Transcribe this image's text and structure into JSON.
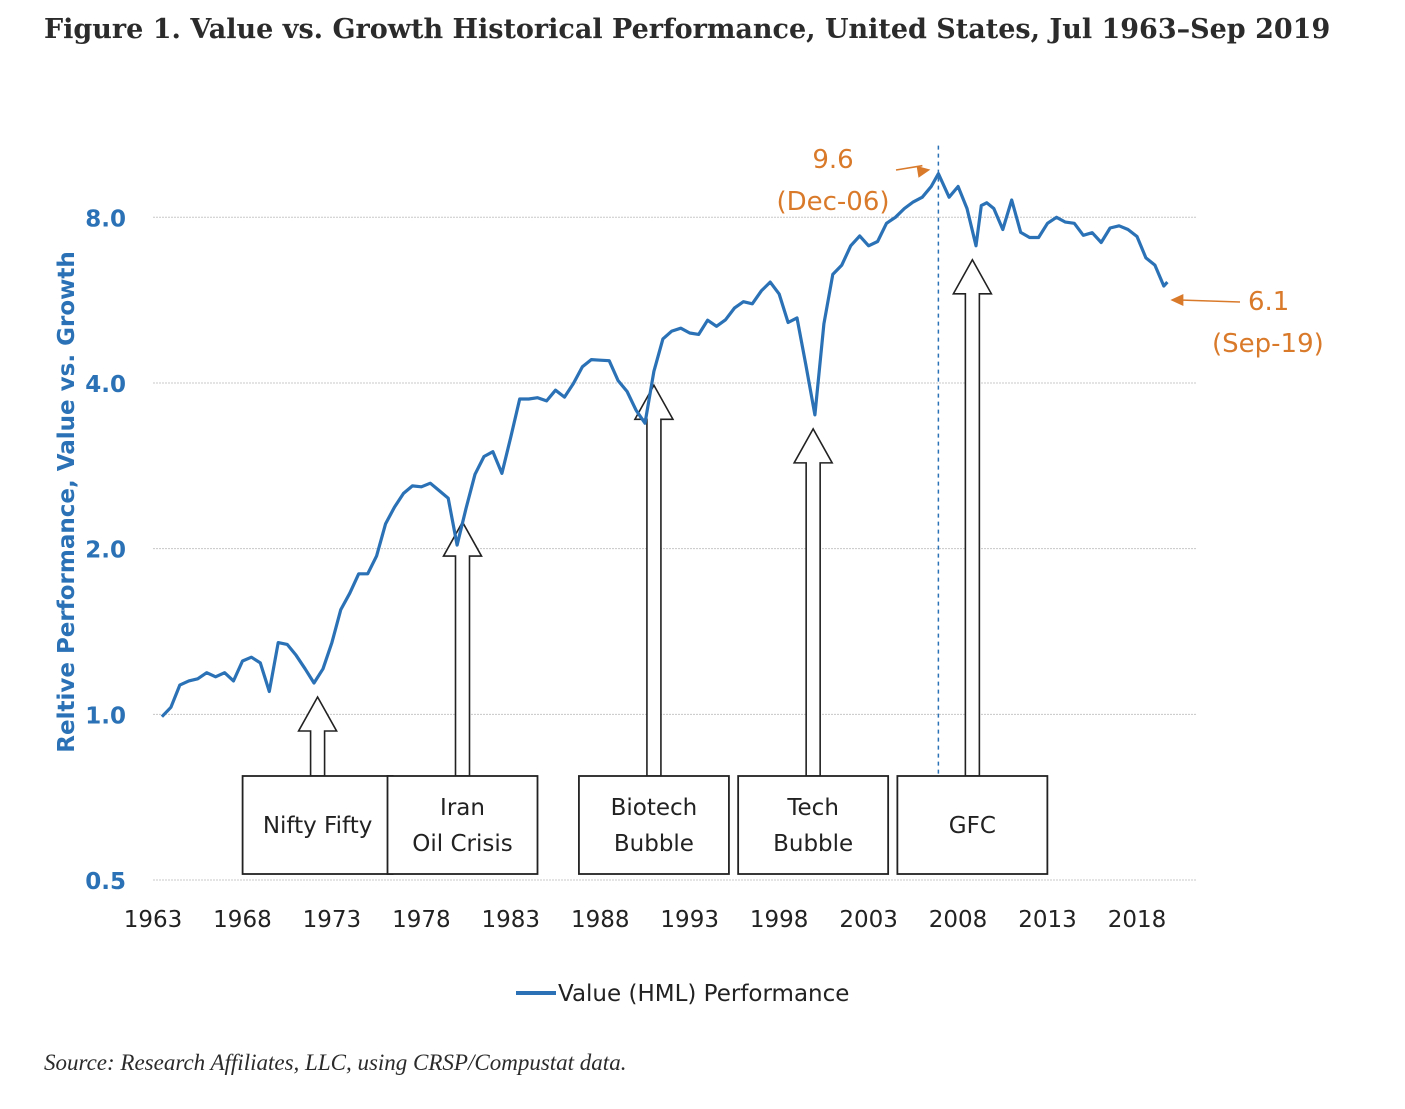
{
  "title": "Figure 1. Value vs. Growth Historical Performance, United States, Jul 1963–Sep 2019",
  "source": "Source: Research Affiliates, LLC, using CRSP/Compustat data.",
  "colors": {
    "line": "#2a72b5",
    "annotation": "#d97a2b",
    "grid": "#c8c8c8"
  },
  "chart_data": {
    "type": "line",
    "ylabel": "Reltive Performance, Value vs. Growth",
    "y_scale": "log",
    "ylim": [
      0.5,
      10.6
    ],
    "xlim": [
      1963,
      2021.3
    ],
    "y_ticks": [
      {
        "value": 0.5,
        "label": "0.5"
      },
      {
        "value": 1.0,
        "label": "1.0"
      },
      {
        "value": 2.0,
        "label": "2.0"
      },
      {
        "value": 4.0,
        "label": "4.0"
      },
      {
        "value": 8.0,
        "label": "8.0"
      }
    ],
    "x_ticks": [
      {
        "value": 1963,
        "label": "1963"
      },
      {
        "value": 1968,
        "label": "1968"
      },
      {
        "value": 1973,
        "label": "1973"
      },
      {
        "value": 1978,
        "label": "1978"
      },
      {
        "value": 1983,
        "label": "1983"
      },
      {
        "value": 1988,
        "label": "1988"
      },
      {
        "value": 1993,
        "label": "1993"
      },
      {
        "value": 1998,
        "label": "1998"
      },
      {
        "value": 2003,
        "label": "2003"
      },
      {
        "value": 2008,
        "label": "2008"
      },
      {
        "value": 2013,
        "label": "2013"
      },
      {
        "value": 2018,
        "label": "2018"
      }
    ],
    "grid": true,
    "legend_position": "bottom",
    "series": [
      {
        "name": "Value (HML) Performance",
        "x": [
          1963.5,
          1964.0,
          1964.5,
          1965.0,
          1965.5,
          1966.0,
          1966.5,
          1967.0,
          1967.5,
          1968.0,
          1968.5,
          1969.0,
          1969.5,
          1970.0,
          1970.5,
          1971.0,
          1971.5,
          1972.0,
          1972.5,
          1973.0,
          1973.5,
          1974.0,
          1974.5,
          1975.0,
          1975.5,
          1976.0,
          1976.5,
          1977.0,
          1977.5,
          1978.0,
          1978.5,
          1979.0,
          1979.5,
          1980.0,
          1980.5,
          1981.0,
          1981.5,
          1982.0,
          1982.5,
          1983.0,
          1983.5,
          1984.0,
          1984.5,
          1985.0,
          1985.5,
          1986.0,
          1986.5,
          1987.0,
          1987.5,
          1988.0,
          1988.5,
          1989.0,
          1989.5,
          1990.0,
          1990.5,
          1991.0,
          1991.5,
          1992.0,
          1992.5,
          1993.0,
          1993.5,
          1994.0,
          1994.5,
          1995.0,
          1995.5,
          1996.0,
          1996.5,
          1997.0,
          1997.5,
          1998.0,
          1998.5,
          1999.0,
          1999.5,
          2000.0,
          2000.5,
          2001.0,
          2001.5,
          2002.0,
          2002.5,
          2003.0,
          2003.5,
          2004.0,
          2004.5,
          2005.0,
          2005.5,
          2006.0,
          2006.5,
          2006.9,
          2007.5,
          2008.0,
          2008.5,
          2009.0,
          2009.3,
          2009.6,
          2010.0,
          2010.5,
          2011.0,
          2011.5,
          2012.0,
          2012.5,
          2013.0,
          2013.5,
          2014.0,
          2014.5,
          2015.0,
          2015.5,
          2016.0,
          2016.5,
          2017.0,
          2017.5,
          2018.0,
          2018.5,
          2019.0,
          2019.5,
          2019.7
        ],
        "values": [
          0.99,
          1.03,
          1.13,
          1.15,
          1.16,
          1.19,
          1.17,
          1.19,
          1.15,
          1.25,
          1.27,
          1.24,
          1.1,
          1.35,
          1.34,
          1.28,
          1.21,
          1.14,
          1.21,
          1.35,
          1.55,
          1.66,
          1.8,
          1.8,
          1.94,
          2.22,
          2.38,
          2.52,
          2.6,
          2.59,
          2.63,
          2.55,
          2.47,
          2.03,
          2.37,
          2.73,
          2.94,
          3.0,
          2.74,
          3.19,
          3.74,
          3.74,
          3.76,
          3.71,
          3.88,
          3.77,
          3.99,
          4.28,
          4.41,
          4.4,
          4.39,
          4.04,
          3.86,
          3.57,
          3.38,
          4.2,
          4.81,
          4.97,
          5.03,
          4.93,
          4.9,
          5.2,
          5.07,
          5.21,
          5.47,
          5.62,
          5.57,
          5.88,
          6.1,
          5.8,
          5.15,
          5.25,
          4.3,
          3.5,
          5.12,
          6.3,
          6.55,
          7.1,
          7.4,
          7.1,
          7.23,
          7.8,
          8.0,
          8.3,
          8.53,
          8.7,
          9.1,
          9.6,
          8.7,
          9.1,
          8.3,
          7.1,
          8.4,
          8.5,
          8.3,
          7.6,
          8.6,
          7.51,
          7.35,
          7.35,
          7.8,
          8.0,
          7.84,
          7.8,
          7.42,
          7.5,
          7.2,
          7.65,
          7.72,
          7.6,
          7.38,
          6.75,
          6.55,
          6.0,
          6.1
        ]
      }
    ],
    "annotations": [
      {
        "label": "Nifty Fifty",
        "x": 1972.2
      },
      {
        "label": "Iran\nOil Crisis",
        "x": 1980.3
      },
      {
        "label": "Biotech\nBubble",
        "x": 1991.0
      },
      {
        "label": "Tech\nBubble",
        "x": 1999.9
      },
      {
        "label": "GFC",
        "x": 2008.8
      }
    ],
    "peak_callout": {
      "value": "9.6",
      "date": "(Dec-06)",
      "x": 2006.9,
      "y": 9.6
    },
    "end_callout": {
      "value": "6.1",
      "date": "(Sep-19)",
      "x": 2019.7,
      "y": 6.1
    }
  }
}
